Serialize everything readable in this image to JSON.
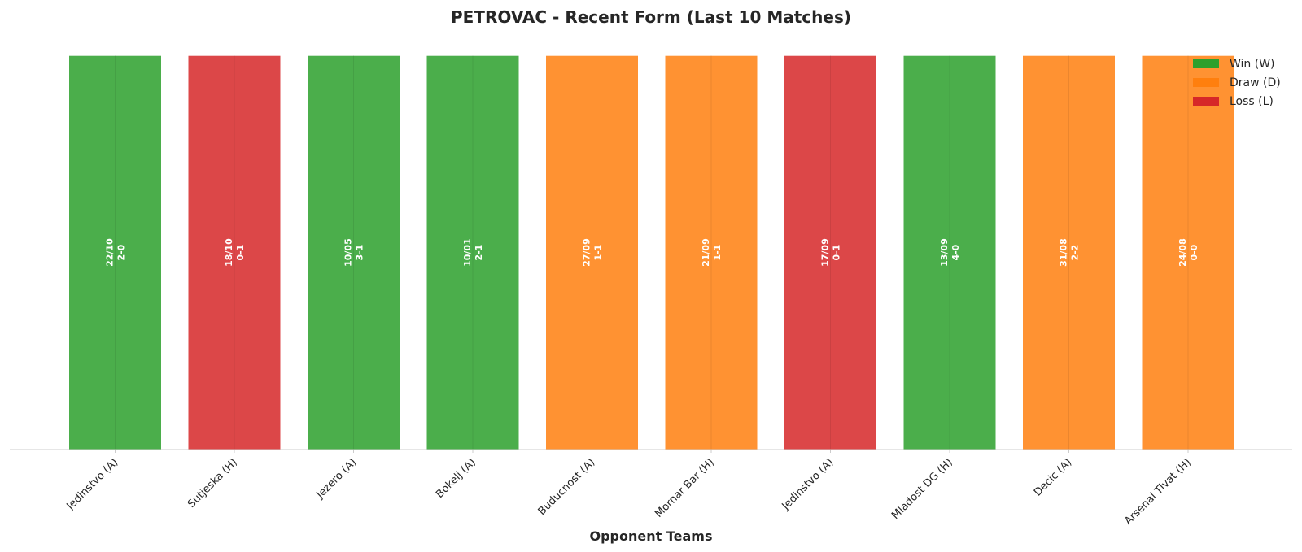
{
  "chart_data": {
    "type": "bar",
    "title": "PETROVAC - Recent Form (Last 10 Matches)",
    "xlabel": "Opponent Teams",
    "ylabel": "",
    "grid": false,
    "legend_position": "top-right",
    "categories": [
      "Jedinstvo (A)",
      "Sutjeska (H)",
      "Jezero (A)",
      "Bokelj (A)",
      "Buducnost (A)",
      "Mornar Bar (H)",
      "Jedinstvo (A)",
      "Mladost DG (H)",
      "Decic (A)",
      "Arsenal Tivat (H)"
    ],
    "values": [
      1,
      1,
      1,
      1,
      1,
      1,
      1,
      1,
      1,
      1
    ],
    "results": [
      "W",
      "L",
      "W",
      "W",
      "D",
      "D",
      "L",
      "W",
      "D",
      "D"
    ],
    "dates": [
      "22/10",
      "18/10",
      "10/05",
      "10/01",
      "27/09",
      "21/09",
      "17/09",
      "13/09",
      "31/08",
      "24/08"
    ],
    "scores": [
      "2-0",
      "0-1",
      "3-1",
      "2-1",
      "1-1",
      "1-1",
      "0-1",
      "4-0",
      "2-2",
      "0-0"
    ],
    "ylim": [
      0,
      1.05
    ],
    "legend": [
      {
        "key": "W",
        "label": "Win (W)",
        "color": "#2ca02c"
      },
      {
        "key": "D",
        "label": "Draw (D)",
        "color": "#ff7f0e"
      },
      {
        "key": "L",
        "label": "Loss (L)",
        "color": "#d62728"
      }
    ]
  }
}
